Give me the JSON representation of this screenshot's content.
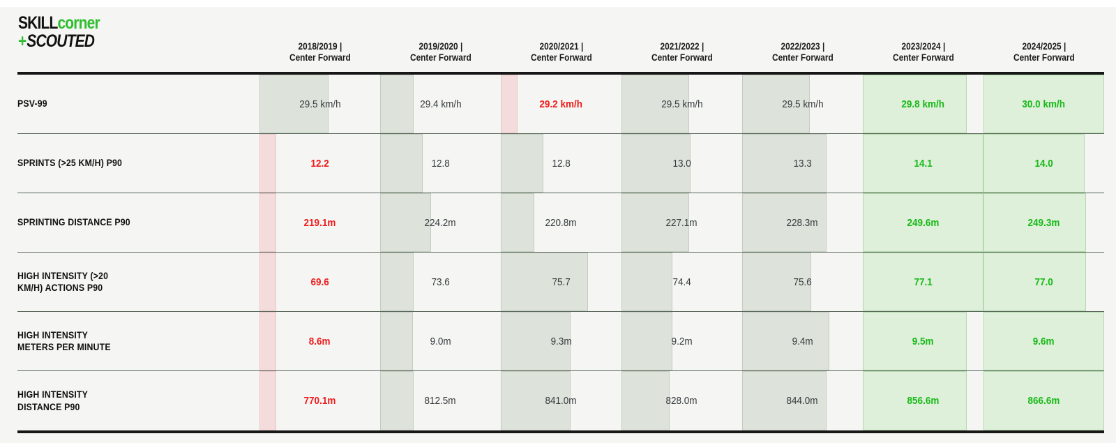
{
  "brand": {
    "line1_black": "SKILL",
    "line1_green": "corner",
    "line2_plus": "+",
    "line2_black": "SCOUTED"
  },
  "colors": {
    "background": "#f5f5f3",
    "brand_green": "#2fbe2f",
    "bar_mid": "#dde2da",
    "bar_low": "#f5dcdc",
    "bar_high": "#def0da",
    "text_low": "#ee1c1c",
    "text_high": "#16b916",
    "divider_black": "#161616",
    "row_separator": "#5a695c"
  },
  "columns": [
    {
      "line1": "2018/2019 |",
      "line2": "Center Forward"
    },
    {
      "line1": "2019/2020 |",
      "line2": "Center Forward"
    },
    {
      "line1": "2020/2021 |",
      "line2": "Center Forward"
    },
    {
      "line1": "2021/2022 |",
      "line2": "Center Forward"
    },
    {
      "line1": "2022/2023 |",
      "line2": "Center Forward"
    },
    {
      "line1": "2023/2024 |",
      "line2": "Center Forward"
    },
    {
      "line1": "2024/2025 |",
      "line2": "Center Forward"
    }
  ],
  "rows": [
    {
      "metric": "PSV-99",
      "cells": [
        {
          "value": "29.5 km/h",
          "state": "mid",
          "bar_pct": 57
        },
        {
          "value": "29.4 km/h",
          "state": "mid",
          "bar_pct": 28
        },
        {
          "value": "29.2 km/h",
          "state": "low",
          "bar_pct": 14
        },
        {
          "value": "29.5 km/h",
          "state": "mid",
          "bar_pct": 56
        },
        {
          "value": "29.5 km/h",
          "state": "mid",
          "bar_pct": 56
        },
        {
          "value": "29.8 km/h",
          "state": "high",
          "bar_pct": 86
        },
        {
          "value": "30.0 km/h",
          "state": "high",
          "bar_pct": 100
        }
      ]
    },
    {
      "metric": "SPRINTS (>25 KM/H) P90",
      "cells": [
        {
          "value": "12.2",
          "state": "low",
          "bar_pct": 14
        },
        {
          "value": "12.8",
          "state": "mid",
          "bar_pct": 35
        },
        {
          "value": "12.8",
          "state": "mid",
          "bar_pct": 35
        },
        {
          "value": "13.0",
          "state": "mid",
          "bar_pct": 57
        },
        {
          "value": "13.3",
          "state": "mid",
          "bar_pct": 70
        },
        {
          "value": "14.1",
          "state": "high",
          "bar_pct": 100
        },
        {
          "value": "14.0",
          "state": "high",
          "bar_pct": 84
        }
      ]
    },
    {
      "metric": "SPRINTING DISTANCE P90",
      "cells": [
        {
          "value": "219.1m",
          "state": "low",
          "bar_pct": 14
        },
        {
          "value": "224.2m",
          "state": "mid",
          "bar_pct": 42
        },
        {
          "value": "220.8m",
          "state": "mid",
          "bar_pct": 28
        },
        {
          "value": "227.1m",
          "state": "mid",
          "bar_pct": 56
        },
        {
          "value": "228.3m",
          "state": "mid",
          "bar_pct": 70
        },
        {
          "value": "249.6m",
          "state": "high",
          "bar_pct": 100
        },
        {
          "value": "249.3m",
          "state": "high",
          "bar_pct": 85
        }
      ]
    },
    {
      "metric": "HIGH INTENSITY (>20\nKM/H) ACTIONS P90",
      "cells": [
        {
          "value": "69.6",
          "state": "low",
          "bar_pct": 14
        },
        {
          "value": "73.6",
          "state": "mid",
          "bar_pct": 28
        },
        {
          "value": "75.7",
          "state": "mid",
          "bar_pct": 72
        },
        {
          "value": "74.4",
          "state": "mid",
          "bar_pct": 42
        },
        {
          "value": "75.6",
          "state": "mid",
          "bar_pct": 57
        },
        {
          "value": "77.1",
          "state": "high",
          "bar_pct": 100
        },
        {
          "value": "77.0",
          "state": "high",
          "bar_pct": 85
        }
      ]
    },
    {
      "metric": "HIGH INTENSITY\nMETERS PER MINUTE",
      "cells": [
        {
          "value": "8.6m",
          "state": "low",
          "bar_pct": 14
        },
        {
          "value": "9.0m",
          "state": "mid",
          "bar_pct": 27
        },
        {
          "value": "9.3m",
          "state": "mid",
          "bar_pct": 58
        },
        {
          "value": "9.2m",
          "state": "mid",
          "bar_pct": 42
        },
        {
          "value": "9.4m",
          "state": "mid",
          "bar_pct": 72
        },
        {
          "value": "9.5m",
          "state": "high",
          "bar_pct": 86
        },
        {
          "value": "9.6m",
          "state": "high",
          "bar_pct": 100
        }
      ]
    },
    {
      "metric": "HIGH INTENSITY\nDISTANCE P90",
      "cells": [
        {
          "value": "770.1m",
          "state": "low",
          "bar_pct": 14
        },
        {
          "value": "812.5m",
          "state": "mid",
          "bar_pct": 28
        },
        {
          "value": "841.0m",
          "state": "mid",
          "bar_pct": 58
        },
        {
          "value": "828.0m",
          "state": "mid",
          "bar_pct": 40
        },
        {
          "value": "844.0m",
          "state": "mid",
          "bar_pct": 70
        },
        {
          "value": "856.6m",
          "state": "high",
          "bar_pct": 86
        },
        {
          "value": "866.6m",
          "state": "high",
          "bar_pct": 100
        }
      ]
    }
  ],
  "chart_data": {
    "type": "table",
    "categories": [
      "2018/2019",
      "2019/2020",
      "2020/2021",
      "2021/2022",
      "2022/2023",
      "2023/2024",
      "2024/2025"
    ],
    "category_position": "Center Forward",
    "series": [
      {
        "name": "PSV-99",
        "unit": "km/h",
        "values": [
          29.5,
          29.4,
          29.2,
          29.5,
          29.5,
          29.8,
          30.0
        ]
      },
      {
        "name": "SPRINTS (>25 KM/H) P90",
        "unit": "",
        "values": [
          12.2,
          12.8,
          12.8,
          13.0,
          13.3,
          14.1,
          14.0
        ]
      },
      {
        "name": "SPRINTING DISTANCE P90",
        "unit": "m",
        "values": [
          219.1,
          224.2,
          220.8,
          227.1,
          228.3,
          249.6,
          249.3
        ]
      },
      {
        "name": "HIGH INTENSITY (>20 KM/H) ACTIONS P90",
        "unit": "",
        "values": [
          69.6,
          73.6,
          75.7,
          74.4,
          75.6,
          77.1,
          77.0
        ]
      },
      {
        "name": "HIGH INTENSITY METERS PER MINUTE",
        "unit": "m",
        "values": [
          8.6,
          9.0,
          9.3,
          9.2,
          9.4,
          9.5,
          9.6
        ]
      },
      {
        "name": "HIGH INTENSITY DISTANCE P90",
        "unit": "m",
        "values": [
          770.1,
          812.5,
          841.0,
          828.0,
          844.0,
          856.6,
          866.6
        ]
      }
    ],
    "annotations": {
      "lowest_value_per_row": "red bold text with pink bar",
      "last_two_seasons": "green bold text with green bar",
      "bar_meaning": "in-cell horizontal bar, width proportional to relative performance"
    },
    "legend_position": "none",
    "grid": "horizontal row separators only"
  }
}
